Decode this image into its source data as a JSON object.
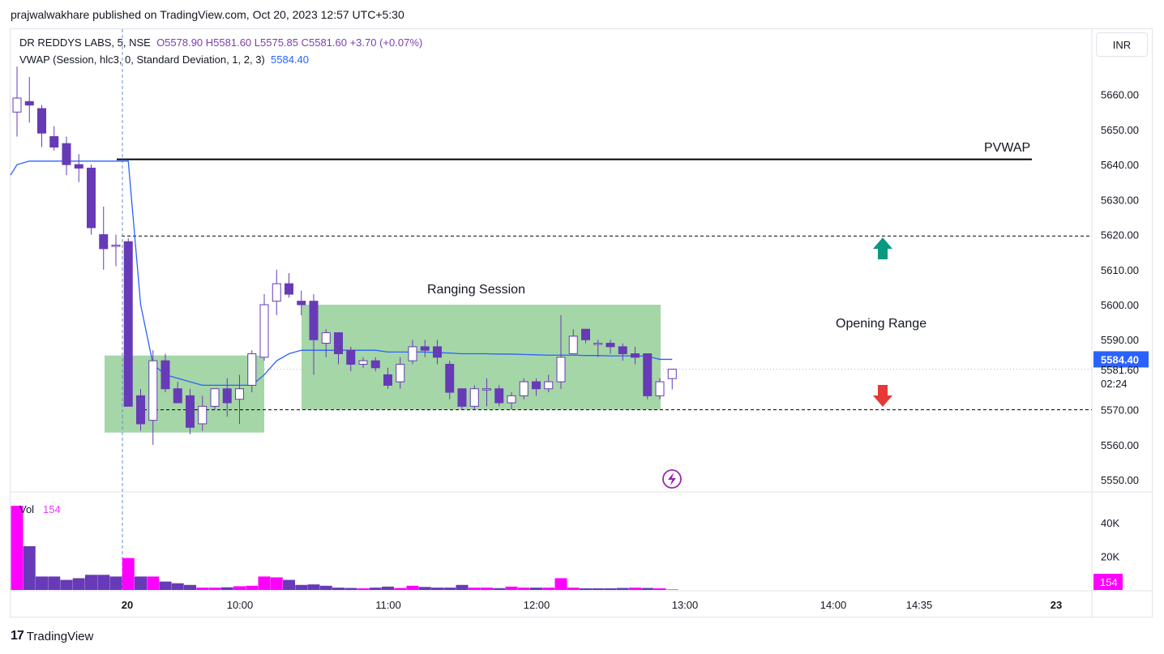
{
  "header": {
    "text": "prajwalwakhare published on TradingView.com, Oct 20, 2023 12:57 UTC+5:30"
  },
  "legend": {
    "symbol": "DR REDDYS LABS, 5, NSE",
    "ohlc": "O5578.90  H5581.60  L5575.85  C5581.60  +3.70 (+0.07%)",
    "vwap_label": "VWAP (Session, hlc3, 0, Standard Deviation, 1, 2, 3)",
    "vwap_value": "5584.40"
  },
  "currency_button": "INR",
  "footer": {
    "logo": "17",
    "brand": "TradingView"
  },
  "icons": {
    "bolt": "lightning-icon",
    "arrow_up": "arrow-up-icon",
    "arrow_down": "arrow-down-icon"
  },
  "colors": {
    "bull": "#ffffff",
    "bear": "#673ab7",
    "vwap": "#2962ff",
    "range_fill": "#a5d6a7",
    "vol_up": "#ff00ff",
    "vol_down": "#673ab7",
    "up_arrow": "#089981",
    "down_arrow": "#e53935"
  },
  "chart_data": {
    "type": "candlestick",
    "y_axis": {
      "ticks": [
        "5660.00",
        "5650.00",
        "5640.00",
        "5630.00",
        "5620.00",
        "5610.00",
        "5600.00",
        "5590.00",
        "5570.00",
        "5560.00",
        "5550.00"
      ],
      "ylim": [
        5546,
        5680
      ],
      "price_tag": "5584.40",
      "last_price": "5581.60",
      "countdown": "02:24"
    },
    "x_axis": {
      "ticks": [
        "20",
        "10:00",
        "11:00",
        "12:00",
        "13:00",
        "14:00",
        "14:35",
        "23"
      ]
    },
    "annotations": {
      "pvwap": "PVWAP",
      "ranging": "Ranging Session",
      "opening_range": "Opening Range"
    },
    "levels": {
      "pvwap": 5641.5,
      "or_high": 5619.6,
      "or_low": 5570
    },
    "zones": [
      {
        "from": 5563.5,
        "to": 5585.5
      },
      {
        "from": 5570,
        "to": 5600
      }
    ],
    "candles": [
      {
        "o": 5655,
        "h": 5668,
        "l": 5648,
        "c": 5659
      },
      {
        "o": 5658,
        "h": 5665,
        "l": 5652,
        "c": 5657
      },
      {
        "o": 5656,
        "h": 5657,
        "l": 5645,
        "c": 5649
      },
      {
        "o": 5648,
        "h": 5651,
        "l": 5644,
        "c": 5645
      },
      {
        "o": 5646,
        "h": 5648,
        "l": 5637,
        "c": 5640
      },
      {
        "o": 5640,
        "h": 5643,
        "l": 5635,
        "c": 5639
      },
      {
        "o": 5639,
        "h": 5640,
        "l": 5620,
        "c": 5622
      },
      {
        "o": 5620,
        "h": 5628,
        "l": 5610,
        "c": 5616
      },
      {
        "o": 5617,
        "h": 5620,
        "l": 5611,
        "c": 5617
      },
      {
        "o": 5618,
        "h": 5619,
        "l": 5571,
        "c": 5571
      },
      {
        "o": 5574,
        "h": 5576,
        "l": 5564,
        "c": 5566
      },
      {
        "o": 5567,
        "h": 5587,
        "l": 5560,
        "c": 5584
      },
      {
        "o": 5584,
        "h": 5586,
        "l": 5575,
        "c": 5576
      },
      {
        "o": 5576,
        "h": 5578,
        "l": 5572,
        "c": 5572
      },
      {
        "o": 5574,
        "h": 5576,
        "l": 5563,
        "c": 5565
      },
      {
        "o": 5566,
        "h": 5574,
        "l": 5564,
        "c": 5571
      },
      {
        "o": 5571,
        "h": 5576,
        "l": 5570,
        "c": 5576
      },
      {
        "o": 5576,
        "h": 5579,
        "l": 5568,
        "c": 5572
      },
      {
        "o": 5573,
        "h": 5580,
        "l": 5566,
        "c": 5576
      },
      {
        "o": 5577,
        "h": 5587,
        "l": 5575,
        "c": 5586
      },
      {
        "o": 5585,
        "h": 5603,
        "l": 5584,
        "c": 5600
      },
      {
        "o": 5601,
        "h": 5610,
        "l": 5597,
        "c": 5606
      },
      {
        "o": 5606,
        "h": 5609,
        "l": 5602,
        "c": 5603
      },
      {
        "o": 5601,
        "h": 5604,
        "l": 5597,
        "c": 5600
      },
      {
        "o": 5601,
        "h": 5603,
        "l": 5580,
        "c": 5590
      },
      {
        "o": 5589,
        "h": 5593,
        "l": 5585,
        "c": 5592
      },
      {
        "o": 5592,
        "h": 5592,
        "l": 5583,
        "c": 5586
      },
      {
        "o": 5587,
        "h": 5588,
        "l": 5581,
        "c": 5583
      },
      {
        "o": 5583,
        "h": 5585,
        "l": 5582,
        "c": 5584
      },
      {
        "o": 5584,
        "h": 5585,
        "l": 5581,
        "c": 5582
      },
      {
        "o": 5580,
        "h": 5582,
        "l": 5576,
        "c": 5577
      },
      {
        "o": 5578,
        "h": 5585,
        "l": 5576,
        "c": 5583
      },
      {
        "o": 5584,
        "h": 5590,
        "l": 5583,
        "c": 5588
      },
      {
        "o": 5588,
        "h": 5590,
        "l": 5585,
        "c": 5587
      },
      {
        "o": 5588,
        "h": 5590,
        "l": 5583,
        "c": 5585
      },
      {
        "o": 5583,
        "h": 5584,
        "l": 5573,
        "c": 5575
      },
      {
        "o": 5576,
        "h": 5576,
        "l": 5570,
        "c": 5571
      },
      {
        "o": 5571,
        "h": 5577,
        "l": 5570,
        "c": 5576
      },
      {
        "o": 5576,
        "h": 5579,
        "l": 5571,
        "c": 5576
      },
      {
        "o": 5576,
        "h": 5577,
        "l": 5571,
        "c": 5572
      },
      {
        "o": 5572,
        "h": 5575,
        "l": 5570,
        "c": 5574
      },
      {
        "o": 5574,
        "h": 5579,
        "l": 5573,
        "c": 5578
      },
      {
        "o": 5578,
        "h": 5579,
        "l": 5574,
        "c": 5576
      },
      {
        "o": 5576,
        "h": 5580,
        "l": 5575,
        "c": 5578
      },
      {
        "o": 5578,
        "h": 5597,
        "l": 5576,
        "c": 5585
      },
      {
        "o": 5586,
        "h": 5593,
        "l": 5586,
        "c": 5591
      },
      {
        "o": 5593,
        "h": 5593,
        "l": 5589,
        "c": 5590
      },
      {
        "o": 5589,
        "h": 5590,
        "l": 5585,
        "c": 5589
      },
      {
        "o": 5589,
        "h": 5590,
        "l": 5586,
        "c": 5588
      },
      {
        "o": 5588,
        "h": 5589,
        "l": 5584,
        "c": 5586
      },
      {
        "o": 5586,
        "h": 5588,
        "l": 5583,
        "c": 5585
      },
      {
        "o": 5586,
        "h": 5586,
        "l": 5573,
        "c": 5574
      },
      {
        "o": 5574,
        "h": 5579,
        "l": 5573,
        "c": 5578
      },
      {
        "o": 5578.9,
        "h": 5581.6,
        "l": 5575.85,
        "c": 5581.6
      }
    ],
    "vwap": [
      5640,
      5641,
      5641,
      5641,
      5641,
      5641,
      5641,
      5641,
      5641,
      5641,
      5600,
      5583,
      5580,
      5579,
      5578,
      5577,
      5577,
      5577,
      5577,
      5577,
      5580,
      5584,
      5586,
      5587,
      5587,
      5587,
      5587,
      5587,
      5587,
      5587,
      5586.5,
      5586.5,
      5586.5,
      5586.5,
      5586.3,
      5586.2,
      5586,
      5586,
      5586,
      5585.9,
      5585.9,
      5585.8,
      5585.7,
      5585.6,
      5585.6,
      5585.6,
      5585.5,
      5585.5,
      5585.4,
      5585.4,
      5585.4,
      5585.3,
      5584.4,
      5584.4
    ],
    "volume": {
      "label": "Vol",
      "last": "154",
      "ticks": [
        "40K",
        "20K"
      ],
      "max_k": 52,
      "values_k": [
        50,
        26,
        8,
        8,
        6,
        7,
        9,
        9,
        8,
        19,
        8,
        8,
        5,
        4,
        3,
        1.4,
        1.4,
        1.6,
        2.2,
        2.5,
        8,
        7.5,
        6,
        3,
        3.3,
        2.5,
        1.4,
        1.2,
        1,
        1.4,
        2,
        1.2,
        2.5,
        1.8,
        1.4,
        1.4,
        3,
        1.4,
        1.4,
        1.1,
        2,
        1.4,
        1.4,
        1.4,
        7,
        1.4,
        1,
        1,
        1,
        1.2,
        1.4,
        1.2,
        1,
        0.3
      ],
      "bull_flags": [
        1,
        0,
        0,
        0,
        0,
        0,
        0,
        0,
        0,
        1,
        0,
        1,
        0,
        0,
        0,
        1,
        1,
        0,
        1,
        1,
        1,
        1,
        0,
        0,
        0,
        0,
        0,
        0,
        1,
        0,
        0,
        1,
        1,
        0,
        0,
        0,
        0,
        1,
        1,
        0,
        1,
        1,
        0,
        1,
        1,
        1,
        0,
        0,
        0,
        0,
        1,
        0,
        1,
        1
      ]
    }
  }
}
